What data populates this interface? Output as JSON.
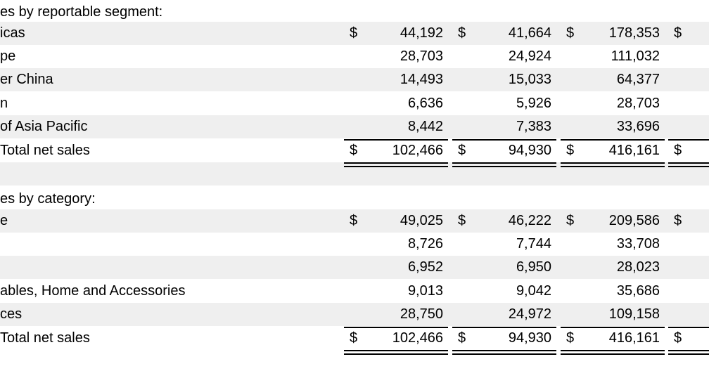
{
  "segment_section": {
    "heading": "es by reportable segment:",
    "rows": [
      {
        "label": "icas",
        "v1": "44,192",
        "v2": "41,664",
        "v3": "178,353",
        "dollar": true
      },
      {
        "label": "pe",
        "v1": "28,703",
        "v2": "24,924",
        "v3": "111,032",
        "dollar": false
      },
      {
        "label": "er China",
        "v1": "14,493",
        "v2": "15,033",
        "v3": "64,377",
        "dollar": false
      },
      {
        "label": "n",
        "v1": "6,636",
        "v2": "5,926",
        "v3": "28,703",
        "dollar": false
      },
      {
        "label": "of Asia Pacific",
        "v1": "8,442",
        "v2": "7,383",
        "v3": "33,696",
        "dollar": false
      }
    ],
    "total": {
      "label": "Total net sales",
      "v1": "102,466",
      "v2": "94,930",
      "v3": "416,161"
    }
  },
  "category_section": {
    "heading": "es by category:",
    "rows": [
      {
        "label": "e",
        "v1": "49,025",
        "v2": "46,222",
        "v3": "209,586",
        "dollar": true
      },
      {
        "label": "",
        "v1": "8,726",
        "v2": "7,744",
        "v3": "33,708",
        "dollar": false
      },
      {
        "label": "",
        "v1": "6,952",
        "v2": "6,950",
        "v3": "28,023",
        "dollar": false
      },
      {
        "label": "ables, Home and Accessories",
        "v1": "9,013",
        "v2": "9,042",
        "v3": "35,686",
        "dollar": false
      },
      {
        "label": "ces",
        "v1": "28,750",
        "v2": "24,972",
        "v3": "109,158",
        "dollar": false
      }
    ],
    "total": {
      "label": "Total net sales",
      "v1": "102,466",
      "v2": "94,930",
      "v3": "416,161"
    }
  },
  "currency_symbol": "$"
}
